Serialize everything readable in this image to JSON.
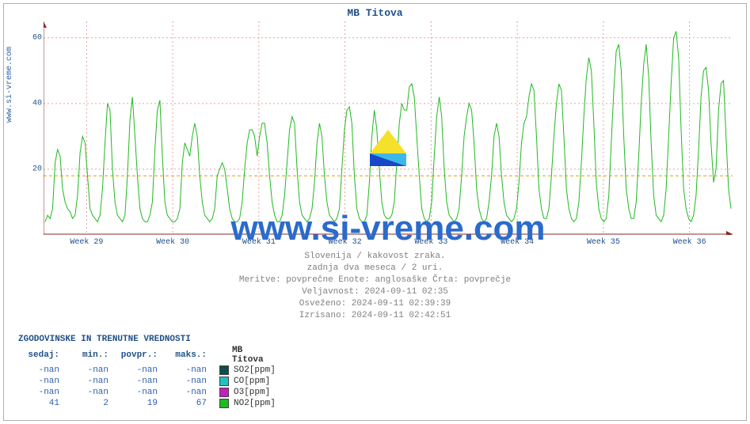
{
  "title": "MB Titova",
  "site_url_text": "www.si-vreme.com",
  "watermark_text": "www.si-vreme.com",
  "chart": {
    "type": "line",
    "series_color": "#22b822",
    "axis_color": "#8a2a2a",
    "grid_major_color": "#e0b0b0",
    "grid_dash_color": "#e8a0a0",
    "background_color": "#ffffff",
    "dashed_ref_line": {
      "y": 18,
      "color": "#e0a000"
    },
    "ylim": [
      0,
      65
    ],
    "yticks": [
      20,
      40,
      60
    ],
    "x_categories": [
      "Week 29",
      "Week 30",
      "Week 31",
      "Week 32",
      "Week 33",
      "Week 34",
      "Week 35",
      "Week 36"
    ],
    "line_width": 1,
    "values": [
      4,
      6,
      5,
      8,
      22,
      26,
      24,
      14,
      10,
      8,
      7,
      5,
      6,
      12,
      25,
      30,
      28,
      18,
      8,
      6,
      5,
      4,
      6,
      14,
      28,
      40,
      38,
      20,
      10,
      6,
      5,
      4,
      6,
      18,
      35,
      42,
      30,
      18,
      8,
      5,
      4,
      4,
      6,
      10,
      26,
      38,
      41,
      24,
      10,
      6,
      5,
      4,
      4,
      5,
      8,
      22,
      28,
      26,
      24,
      30,
      34,
      30,
      18,
      10,
      6,
      5,
      4,
      5,
      8,
      18,
      20,
      22,
      20,
      14,
      8,
      5,
      4,
      4,
      5,
      10,
      20,
      28,
      32,
      32,
      30,
      24,
      30,
      34,
      34,
      28,
      18,
      10,
      6,
      4,
      4,
      6,
      12,
      22,
      32,
      36,
      34,
      20,
      10,
      6,
      5,
      4,
      5,
      8,
      16,
      28,
      34,
      30,
      18,
      10,
      6,
      5,
      4,
      5,
      8,
      20,
      32,
      38,
      39,
      34,
      18,
      8,
      5,
      4,
      4,
      6,
      16,
      30,
      38,
      32,
      20,
      10,
      6,
      5,
      5,
      6,
      10,
      22,
      34,
      40,
      38,
      38,
      45,
      46,
      42,
      30,
      18,
      8,
      5,
      4,
      5,
      10,
      24,
      36,
      42,
      36,
      20,
      10,
      6,
      5,
      4,
      5,
      8,
      18,
      30,
      36,
      40,
      38,
      28,
      14,
      8,
      5,
      4,
      5,
      10,
      18,
      30,
      34,
      30,
      18,
      10,
      6,
      5,
      4,
      5,
      8,
      16,
      28,
      34,
      36,
      42,
      46,
      44,
      30,
      14,
      8,
      5,
      5,
      8,
      18,
      30,
      40,
      46,
      44,
      30,
      14,
      8,
      5,
      4,
      5,
      10,
      22,
      36,
      48,
      54,
      50,
      34,
      16,
      8,
      5,
      4,
      5,
      12,
      28,
      44,
      56,
      58,
      50,
      30,
      14,
      8,
      5,
      5,
      10,
      24,
      40,
      52,
      58,
      48,
      28,
      12,
      6,
      5,
      4,
      6,
      14,
      30,
      46,
      60,
      62,
      54,
      32,
      14,
      8,
      5,
      4,
      6,
      12,
      26,
      42,
      50,
      51,
      44,
      28,
      16,
      20,
      38,
      46,
      47,
      30,
      14,
      8
    ]
  },
  "meta_lines": [
    "Slovenija / kakovost zraka.",
    "zadnja dva meseca / 2 uri.",
    "Meritve: povprečne  Enote: anglosaške  Črta: povprečje",
    "Veljavnost: 2024-09-11 02:35",
    "Osveženo: 2024-09-11 02:39:39",
    "Izrisano: 2024-09-11 02:42:51"
  ],
  "table": {
    "title": "ZGODOVINSKE IN TRENUTNE VREDNOSTI",
    "headers": [
      "sedaj:",
      "min.:",
      "povpr.:",
      "maks.:"
    ],
    "measure_header": "MB Titova",
    "rows": [
      {
        "values": [
          "-nan",
          "-nan",
          "-nan",
          "-nan"
        ],
        "swatch": "#0d4d4d",
        "label": "SO2[ppm]"
      },
      {
        "values": [
          "-nan",
          "-nan",
          "-nan",
          "-nan"
        ],
        "swatch": "#20c0c0",
        "label": "CO[ppm]"
      },
      {
        "values": [
          "-nan",
          "-nan",
          "-nan",
          "-nan"
        ],
        "swatch": "#c020c0",
        "label": "O3[ppm]"
      },
      {
        "values": [
          "41",
          "2",
          "19",
          "67"
        ],
        "swatch": "#22b822",
        "label": "NO2[ppm]"
      }
    ]
  },
  "watermark_logo_colors": {
    "top_yellow": "#f5e02a",
    "mid_cyan": "#3bb8e8",
    "bot_blue": "#1648c8"
  }
}
